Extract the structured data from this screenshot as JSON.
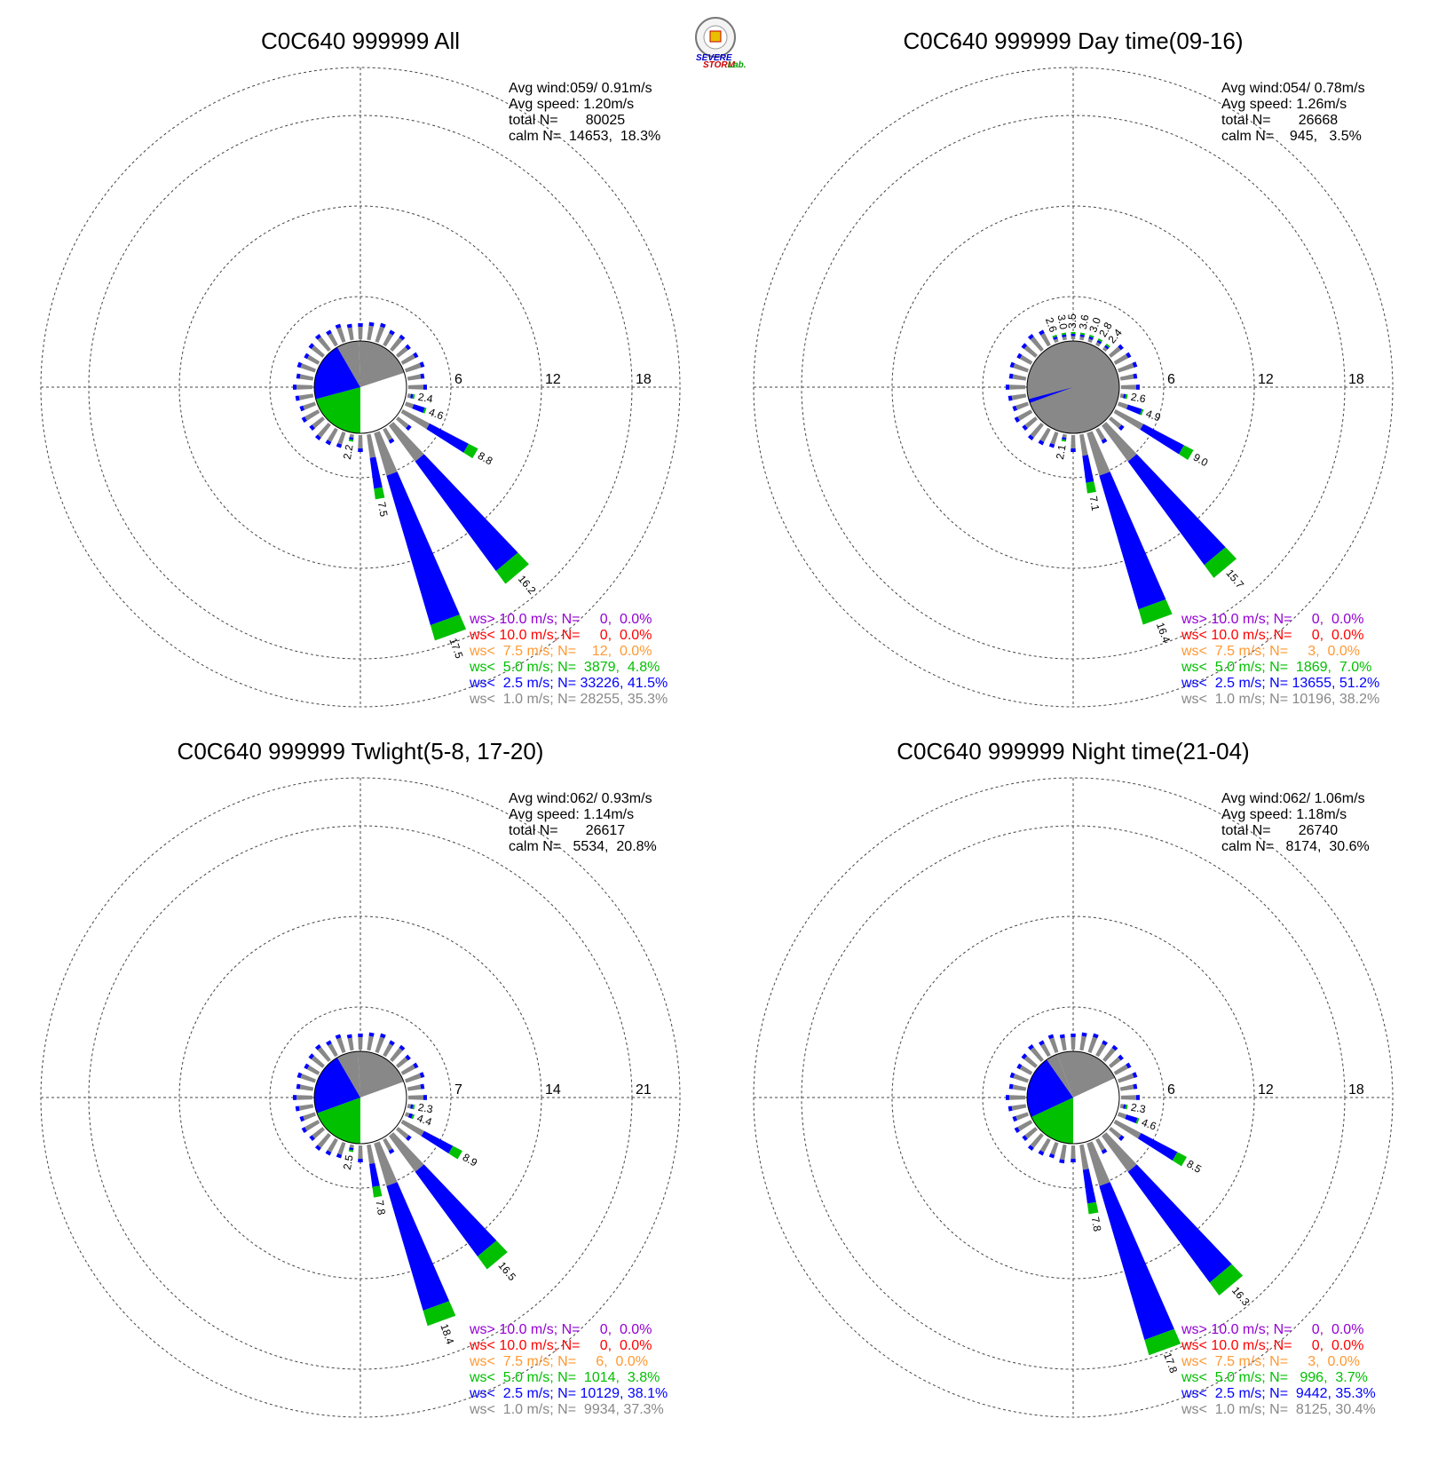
{
  "logo": {
    "text_severe": "SEVERE",
    "text_storm": "STORM",
    "text_lab": "Lab."
  },
  "chart_data": [
    {
      "type": "wind-rose",
      "title": "C0C640 999999 All",
      "stats": [
        "Avg wind:059/ 0.91m/s",
        "Avg speed: 1.20m/s",
        "total N=       80025",
        "calm N=  14653,  18.3%"
      ],
      "rings": [
        6,
        12,
        18
      ],
      "ring_labels": [
        "6",
        "12",
        "18"
      ],
      "max_ring": 18,
      "labeled_bars": [
        {
          "dir": 10,
          "value": 2.4,
          "label": "2.4"
        },
        {
          "dir": 11,
          "value": 4.6,
          "label": "4.6"
        },
        {
          "dir": 12,
          "value": 8.8,
          "label": "8.8"
        },
        {
          "dir": 14,
          "value": 16.2,
          "label": "16.2"
        },
        {
          "dir": 16,
          "value": 17.5,
          "label": "17.5"
        },
        {
          "dir": 17,
          "value": 7.5,
          "label": "7.5"
        },
        {
          "dir": 19,
          "value": 2.2,
          "label": "2.2"
        }
      ],
      "legend": [
        {
          "text": "ws> 10.0 m/s; N=     0,  0.0%",
          "color": "#9400d3"
        },
        {
          "text": "ws< 10.0 m/s; N=     0,  0.0%",
          "color": "#ff0000"
        },
        {
          "text": "ws<  7.5 m/s; N=    12,  0.0%",
          "color": "#ff9933"
        },
        {
          "text": "ws<  5.0 m/s; N=  3879,  4.8%",
          "color": "#00c000"
        },
        {
          "text": "ws<  2.5 m/s; N= 33226, 41.5%",
          "color": "#0000ff"
        },
        {
          "text": "ws<  1.0 m/s; N= 28255, 35.3%",
          "color": "#888888"
        }
      ]
    },
    {
      "type": "wind-rose",
      "title": "C0C640 999999 Day time(09-16)",
      "stats": [
        "Avg wind:054/ 0.78m/s",
        "Avg speed: 1.26m/s",
        "total N=       26668",
        "calm N=    945,   3.5%"
      ],
      "rings": [
        6,
        12,
        18
      ],
      "ring_labels": [
        "6",
        "12",
        "18"
      ],
      "max_ring": 18,
      "labeled_bars": [
        {
          "dir": 10,
          "value": 2.6,
          "label": "2.6"
        },
        {
          "dir": 11,
          "value": 4.9,
          "label": "4.9"
        },
        {
          "dir": 12,
          "value": 9.0,
          "label": "9.0"
        },
        {
          "dir": 14,
          "value": 15.7,
          "label": "15.7"
        },
        {
          "dir": 16,
          "value": 16.4,
          "label": "16.4"
        },
        {
          "dir": 17,
          "value": 7.1,
          "label": "7.1"
        },
        {
          "dir": 19,
          "value": 2.1,
          "label": "2.1"
        },
        {
          "dir": 4,
          "value": 2.4,
          "label": "2.4"
        },
        {
          "dir": 3,
          "value": 2.8,
          "label": "2.8"
        },
        {
          "dir": 2,
          "value": 3.0,
          "label": "3.0"
        },
        {
          "dir": 1,
          "value": 3.6,
          "label": "3.6"
        },
        {
          "dir": 0,
          "value": 3.5,
          "label": "3.5"
        },
        {
          "dir": 35,
          "value": 3.0,
          "label": "3.0"
        },
        {
          "dir": 34,
          "value": 2.6,
          "label": "2.6"
        }
      ],
      "legend": [
        {
          "text": "ws> 10.0 m/s; N=     0,  0.0%",
          "color": "#9400d3"
        },
        {
          "text": "ws< 10.0 m/s; N=     0,  0.0%",
          "color": "#ff0000"
        },
        {
          "text": "ws<  7.5 m/s; N=     3,  0.0%",
          "color": "#ff9933"
        },
        {
          "text": "ws<  5.0 m/s; N=  1869,  7.0%",
          "color": "#00c000"
        },
        {
          "text": "ws<  2.5 m/s; N= 13655, 51.2%",
          "color": "#0000ff"
        },
        {
          "text": "ws<  1.0 m/s; N= 10196, 38.2%",
          "color": "#888888"
        }
      ]
    },
    {
      "type": "wind-rose",
      "title": "C0C640 999999 Twlight(5-8, 17-20)",
      "stats": [
        "Avg wind:062/ 0.93m/s",
        "Avg speed: 1.14m/s",
        "total N=       26617",
        "calm N=   5534,  20.8%"
      ],
      "rings": [
        7,
        14,
        21
      ],
      "ring_labels": [
        "7",
        "14",
        "21"
      ],
      "max_ring": 21,
      "labeled_bars": [
        {
          "dir": 10,
          "value": 2.3,
          "label": "2.3"
        },
        {
          "dir": 11,
          "value": 4.4,
          "label": "4.4"
        },
        {
          "dir": 12,
          "value": 8.9,
          "label": "8.9"
        },
        {
          "dir": 14,
          "value": 16.5,
          "label": "16.5"
        },
        {
          "dir": 16,
          "value": 18.4,
          "label": "18.4"
        },
        {
          "dir": 17,
          "value": 7.8,
          "label": "7.8"
        },
        {
          "dir": 19,
          "value": 2.5,
          "label": "2.5"
        }
      ],
      "legend": [
        {
          "text": "ws> 10.0 m/s; N=     0,  0.0%",
          "color": "#9400d3"
        },
        {
          "text": "ws< 10.0 m/s; N=     0,  0.0%",
          "color": "#ff0000"
        },
        {
          "text": "ws<  7.5 m/s; N=     6,  0.0%",
          "color": "#ff9933"
        },
        {
          "text": "ws<  5.0 m/s; N=  1014,  3.8%",
          "color": "#00c000"
        },
        {
          "text": "ws<  2.5 m/s; N= 10129, 38.1%",
          "color": "#0000ff"
        },
        {
          "text": "ws<  1.0 m/s; N=  9934, 37.3%",
          "color": "#888888"
        }
      ]
    },
    {
      "type": "wind-rose",
      "title": "C0C640 999999 Night time(21-04)",
      "stats": [
        "Avg wind:062/ 1.06m/s",
        "Avg speed: 1.18m/s",
        "total N=       26740",
        "calm N=   8174,  30.6%"
      ],
      "rings": [
        6,
        12,
        18
      ],
      "ring_labels": [
        "6",
        "12",
        "18"
      ],
      "max_ring": 18,
      "labeled_bars": [
        {
          "dir": 10,
          "value": 2.3,
          "label": "2.3"
        },
        {
          "dir": 11,
          "value": 4.6,
          "label": "4.6"
        },
        {
          "dir": 12,
          "value": 8.5,
          "label": "8.5"
        },
        {
          "dir": 14,
          "value": 16.3,
          "label": "16.3"
        },
        {
          "dir": 16,
          "value": 17.8,
          "label": "17.8"
        },
        {
          "dir": 17,
          "value": 7.8,
          "label": "7.8"
        }
      ],
      "legend": [
        {
          "text": "ws> 10.0 m/s; N=     0,  0.0%",
          "color": "#9400d3"
        },
        {
          "text": "ws< 10.0 m/s; N=     0,  0.0%",
          "color": "#ff0000"
        },
        {
          "text": "ws<  7.5 m/s; N=     3,  0.0%",
          "color": "#ff9933"
        },
        {
          "text": "ws<  5.0 m/s; N=   996,  3.7%",
          "color": "#00c000"
        },
        {
          "text": "ws<  2.5 m/s; N=  9442, 35.3%",
          "color": "#0000ff"
        },
        {
          "text": "ws<  1.0 m/s; N=  8125, 30.4%",
          "color": "#888888"
        }
      ]
    }
  ]
}
